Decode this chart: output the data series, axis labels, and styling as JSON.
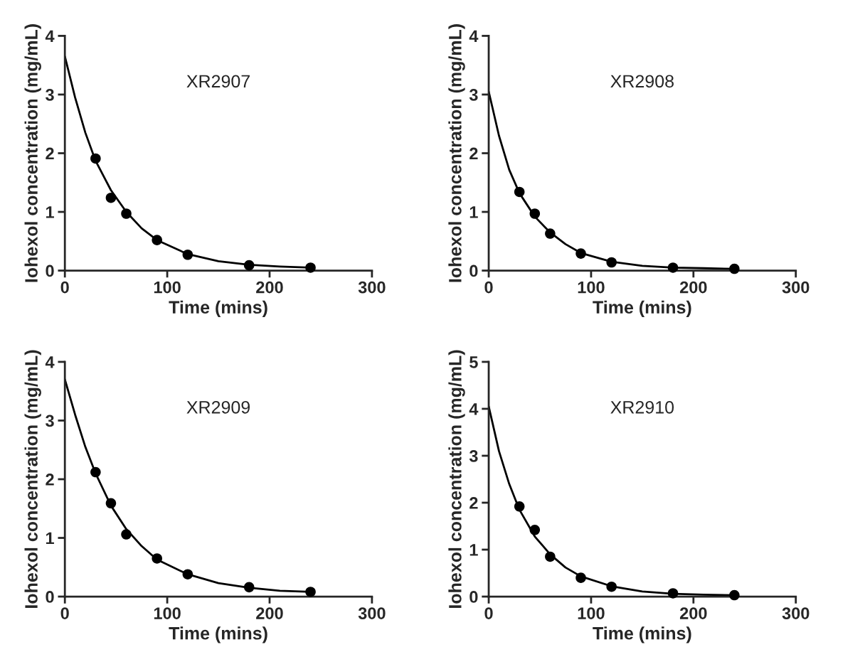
{
  "chart_data": [
    {
      "type": "scatter",
      "xlabel": "Time (mins)",
      "ylabel": "Iohexol concentration (mg/mL)",
      "annotations": [
        "XR2907"
      ],
      "xlim": [
        0,
        300
      ],
      "xticks": [
        0,
        100,
        200,
        300
      ],
      "ylim": [
        0,
        4
      ],
      "yticks": [
        0,
        1,
        2,
        3,
        4
      ],
      "grid": false,
      "legend": false,
      "series": [
        {
          "color": "#000000",
          "marker": "circle",
          "x": [
            30,
            45,
            60,
            90,
            120,
            180,
            240
          ],
          "values": [
            1.91,
            1.24,
            0.97,
            0.52,
            0.27,
            0.09,
            0.05
          ]
        },
        {
          "type": "line",
          "color": "#000000",
          "marker": "none",
          "line_style": "solid",
          "x": [
            0,
            10,
            20,
            30,
            45,
            60,
            75,
            90,
            120,
            150,
            180,
            210,
            240
          ],
          "values": [
            3.65,
            2.95,
            2.35,
            1.87,
            1.37,
            1.0,
            0.72,
            0.52,
            0.28,
            0.16,
            0.1,
            0.07,
            0.05
          ]
        }
      ]
    },
    {
      "type": "scatter",
      "xlabel": "Time (mins)",
      "ylabel": "Iohexol concentration (mg/mL)",
      "annotations": [
        "XR2908"
      ],
      "xlim": [
        0,
        300
      ],
      "xticks": [
        0,
        100,
        200,
        300
      ],
      "ylim": [
        0,
        4
      ],
      "yticks": [
        0,
        1,
        2,
        3,
        4
      ],
      "grid": false,
      "legend": false,
      "series": [
        {
          "color": "#000000",
          "marker": "circle",
          "x": [
            30,
            45,
            60,
            90,
            120,
            180,
            240
          ],
          "values": [
            1.34,
            0.97,
            0.63,
            0.29,
            0.14,
            0.05,
            0.03
          ]
        },
        {
          "type": "line",
          "color": "#000000",
          "marker": "none",
          "line_style": "solid",
          "x": [
            0,
            10,
            20,
            30,
            45,
            60,
            75,
            90,
            120,
            150,
            180,
            210,
            240
          ],
          "values": [
            3.05,
            2.3,
            1.72,
            1.32,
            0.92,
            0.65,
            0.45,
            0.3,
            0.15,
            0.08,
            0.05,
            0.04,
            0.03
          ]
        }
      ]
    },
    {
      "type": "scatter",
      "xlabel": "Time (mins)",
      "ylabel": "Iohexol concentration (mg/mL)",
      "annotations": [
        "XR2909"
      ],
      "xlim": [
        0,
        300
      ],
      "xticks": [
        0,
        100,
        200,
        300
      ],
      "ylim": [
        0,
        4
      ],
      "yticks": [
        0,
        1,
        2,
        3,
        4
      ],
      "grid": false,
      "legend": false,
      "series": [
        {
          "color": "#000000",
          "marker": "circle",
          "x": [
            30,
            45,
            60,
            90,
            120,
            180,
            240
          ],
          "values": [
            2.12,
            1.59,
            1.06,
            0.65,
            0.38,
            0.16,
            0.08
          ]
        },
        {
          "type": "line",
          "color": "#000000",
          "marker": "none",
          "line_style": "solid",
          "x": [
            0,
            10,
            20,
            30,
            45,
            60,
            75,
            90,
            120,
            150,
            180,
            210,
            240
          ],
          "values": [
            3.7,
            3.1,
            2.55,
            2.1,
            1.55,
            1.15,
            0.86,
            0.63,
            0.38,
            0.23,
            0.15,
            0.1,
            0.08
          ]
        }
      ]
    },
    {
      "type": "scatter",
      "xlabel": "Time (mins)",
      "ylabel": "Iohexol concentration (mg/mL)",
      "annotations": [
        "XR2910"
      ],
      "xlim": [
        0,
        300
      ],
      "xticks": [
        0,
        100,
        200,
        300
      ],
      "ylim": [
        0,
        5
      ],
      "yticks": [
        0,
        1,
        2,
        3,
        4,
        5
      ],
      "grid": false,
      "legend": false,
      "series": [
        {
          "color": "#000000",
          "marker": "circle",
          "x": [
            30,
            45,
            60,
            90,
            120,
            180,
            240
          ],
          "values": [
            1.92,
            1.42,
            0.85,
            0.4,
            0.21,
            0.07,
            0.03
          ]
        },
        {
          "type": "line",
          "color": "#000000",
          "marker": "none",
          "line_style": "solid",
          "x": [
            0,
            10,
            20,
            30,
            45,
            60,
            75,
            90,
            120,
            150,
            180,
            210,
            240
          ],
          "values": [
            4.05,
            3.1,
            2.4,
            1.85,
            1.28,
            0.9,
            0.62,
            0.43,
            0.22,
            0.11,
            0.06,
            0.04,
            0.03
          ]
        }
      ]
    }
  ]
}
